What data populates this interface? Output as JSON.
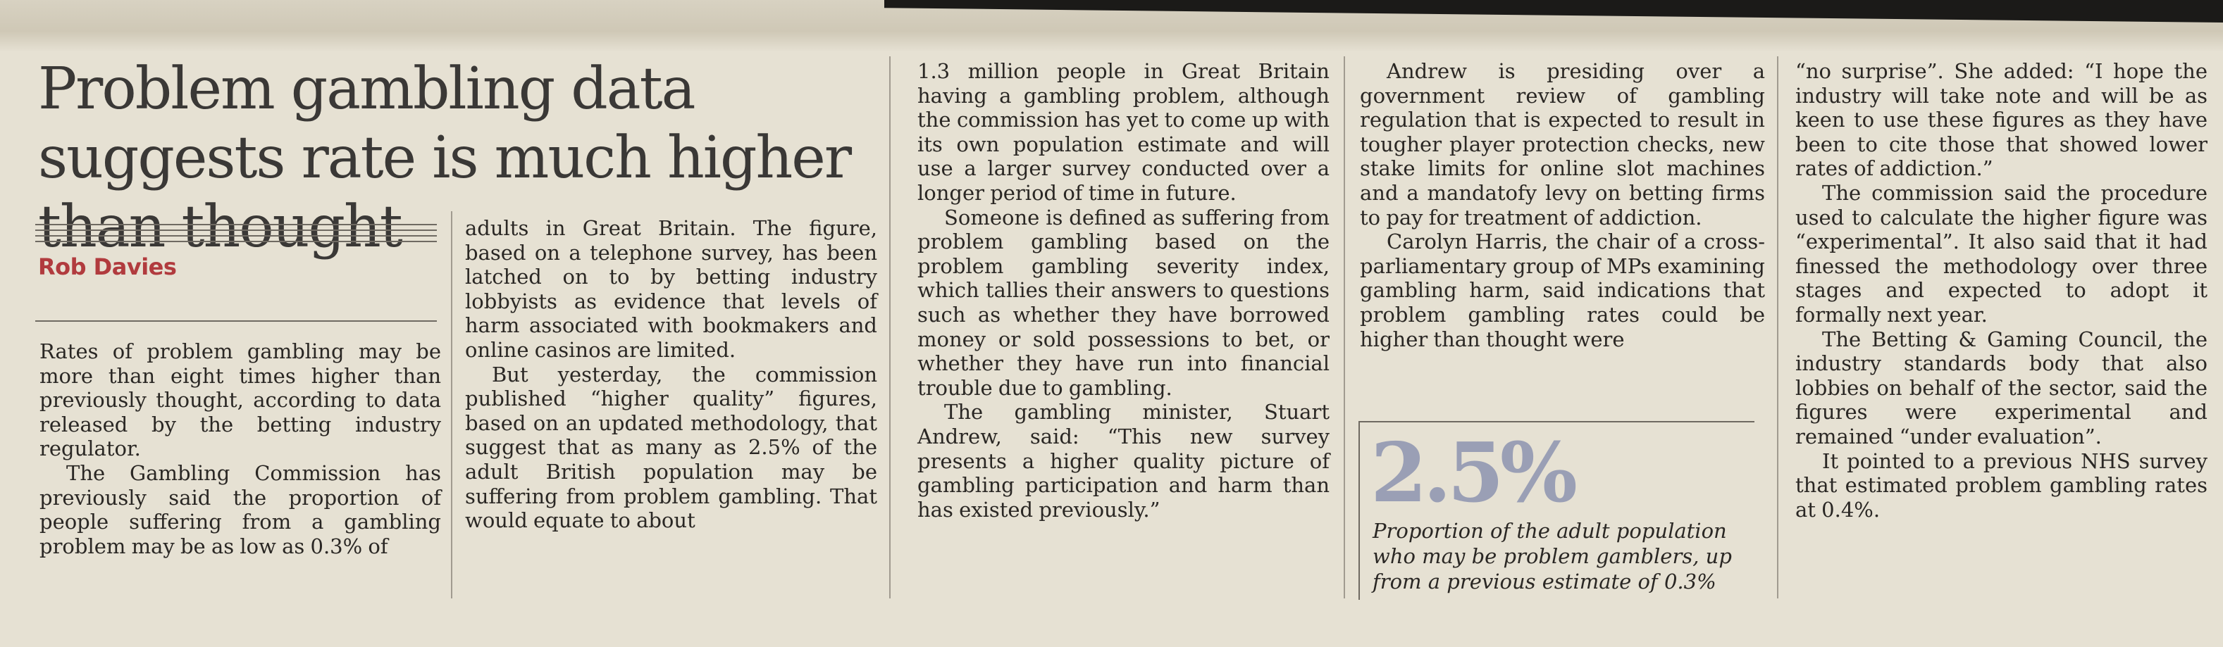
{
  "article": {
    "headline": "Problem gambling data suggests rate is much higher than thought",
    "byline": "Rob Davies",
    "columns": [
      [
        "Rates of problem gambling may be more than eight times higher than previously thought, according to data released by the betting industry regulator.",
        "The Gambling Commission has previously said the proportion of people suffering from a gambling problem may be as low as 0.3% of"
      ],
      [
        "adults in Great Britain. The figure, based on a telephone survey, has been latched on to by betting industry lobbyists as evidence that levels of harm associated with bookmakers and online casinos are limited.",
        "But yesterday, the commission published “higher quality” figures, based on an updated methodology, that suggest that as many as 2.5% of the adult British population may be suffering from problem gambling. That would equate to about"
      ],
      [
        "1.3 million people in Great Britain having a gambling problem, although the commission has yet to come up with its own population estimate and will use a larger survey conducted over a longer period of time in future.",
        "Someone is defined as suffering from problem gambling based on the problem gambling severity index, which tallies their answers to questions such as whether they have borrowed money or sold possessions to bet, or whether they have run into financial trouble due to gambling.",
        "The gambling minister, Stuart Andrew, said: “This new survey presents a higher quality picture of gambling participation and harm than has existed previously.”"
      ],
      [
        "Andrew is presiding over a government review of gambling regulation that is expected to result in tougher player protection checks, new stake limits for online slot machines and a mandatofy levy on betting firms to pay for treatment of addiction.",
        "Carolyn Harris, the chair of a cross-parliamentary group of MPs examining gambling harm, said indications that problem gambling rates could be higher than thought were"
      ],
      [
        "“no surprise”. She added: “I hope the industry will take note and will be as keen to use these figures as they have been to cite those that showed lower rates of addiction.”",
        "The commission said the procedure used to calculate the higher figure was “experimental”. It also said that it had finessed the methodology over three stages and expected to adopt it formally next year.",
        "The Betting & Gaming Council, the industry standards body that also lobbies on behalf of the sector, said the figures were experimental and remained “under evaluation”.",
        "It pointed to a previous NHS survey that estimated problem gambling rates at 0.4%."
      ]
    ],
    "pullquote": {
      "figure": "2.5%",
      "caption": "Proportion of the adult population who may be problem gamblers, up from a previous estimate of 0.3%"
    }
  }
}
